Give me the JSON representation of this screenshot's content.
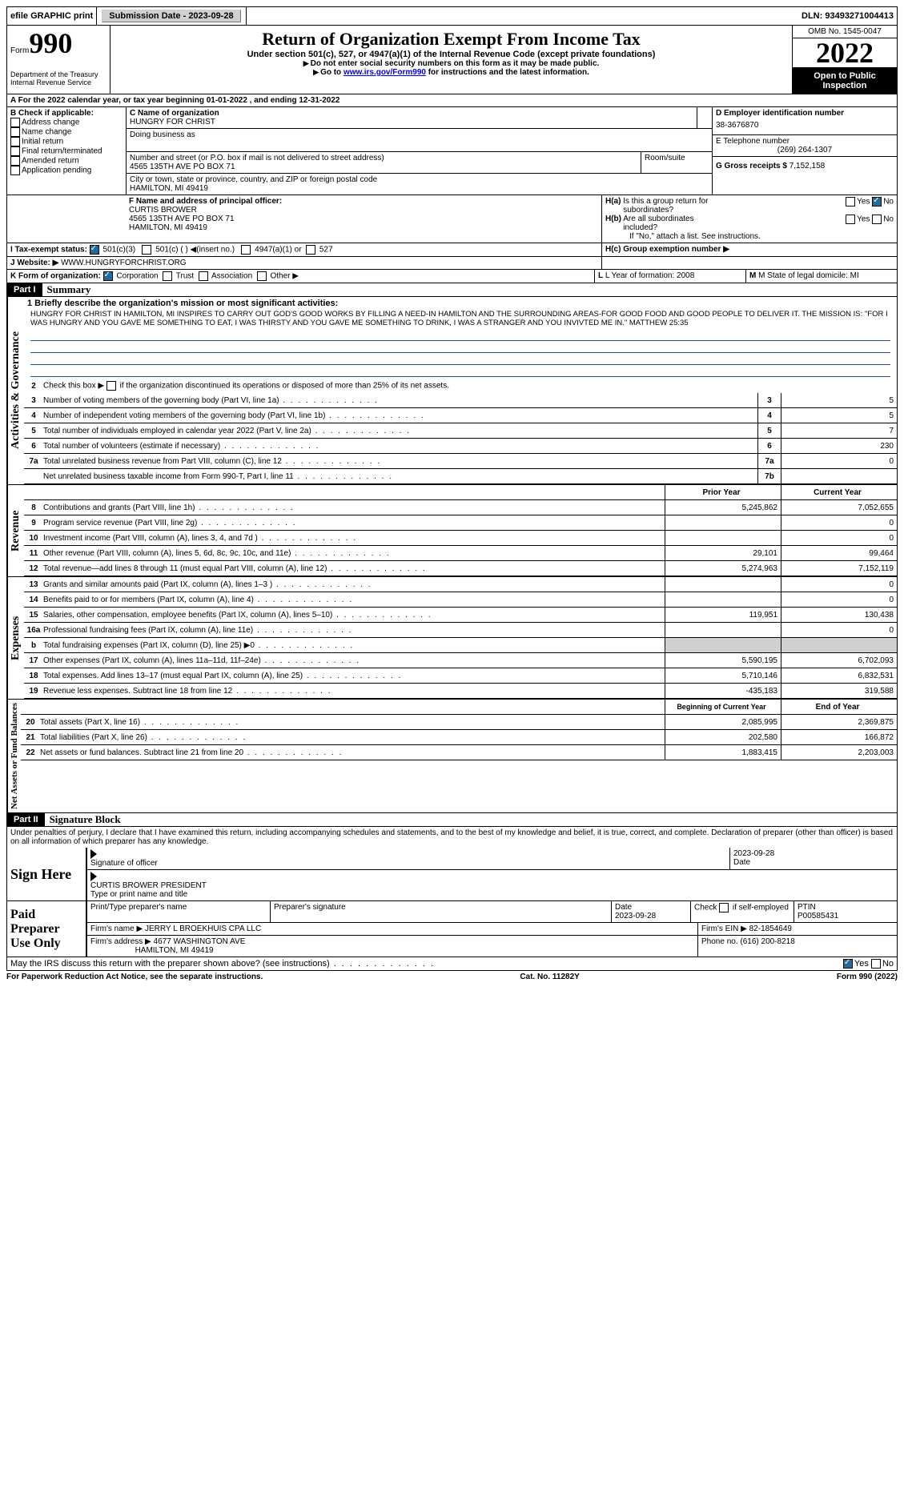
{
  "topbar": {
    "efile": "efile GRAPHIC print",
    "submission_label": "Submission Date - 2023-09-28",
    "dln_label": "DLN: 93493271004413"
  },
  "header": {
    "form_prefix": "Form",
    "form_number": "990",
    "dept": "Department of the Treasury Internal Revenue Service",
    "title": "Return of Organization Exempt From Income Tax",
    "subtitle": "Under section 501(c), 527, or 4947(a)(1) of the Internal Revenue Code (except private foundations)",
    "note1": "Do not enter social security numbers on this form as it may be made public.",
    "note2_pre": "Go to ",
    "note2_link": "www.irs.gov/Form990",
    "note2_post": " for instructions and the latest information.",
    "omb": "OMB No. 1545-0047",
    "year": "2022",
    "open": "Open to Public Inspection"
  },
  "line_a": "For the 2022 calendar year, or tax year beginning 01-01-2022   , and ending 12-31-2022",
  "section_b": {
    "header": "B Check if applicable:",
    "opts": [
      "Address change",
      "Name change",
      "Initial return",
      "Final return/terminated",
      "Amended return",
      "Application pending"
    ]
  },
  "section_c": {
    "name_label": "C Name of organization",
    "org_name": "HUNGRY FOR CHRIST",
    "dba_label": "Doing business as",
    "street_label": "Number and street (or P.O. box if mail is not delivered to street address)",
    "room_label": "Room/suite",
    "street": "4565 135TH AVE PO BOX 71",
    "city_label": "City or town, state or province, country, and ZIP or foreign postal code",
    "city": "HAMILTON, MI  49419"
  },
  "section_d": {
    "label": "D Employer identification number",
    "value": "38-3676870"
  },
  "section_e": {
    "label": "E Telephone number",
    "value": "(269) 264-1307"
  },
  "section_g": {
    "label": "G Gross receipts $",
    "value": "7,152,158"
  },
  "section_f": {
    "label": "F  Name and address of principal officer:",
    "name": "CURTIS BROWER",
    "addr1": "4565 135TH AVE PO BOX 71",
    "addr2": "HAMILTON, MI  49419"
  },
  "section_h": {
    "ha": "H(a)  Is this a group return for subordinates?",
    "hb": "H(b)  Are all subordinates included?",
    "hb_note": "If \"No,\" attach a list. See instructions.",
    "hc": "H(c)  Group exemption number ▶",
    "yes": "Yes",
    "no": "No"
  },
  "section_i": {
    "label": "I   Tax-exempt status:",
    "opt1": "501(c)(3)",
    "opt2": "501(c) (  )",
    "opt2_note": "(insert no.)",
    "opt3": "4947(a)(1) or",
    "opt4": "527"
  },
  "section_j": {
    "label": "J   Website: ▶",
    "value": "WWW.HUNGRYFORCHRIST.ORG"
  },
  "section_k": {
    "label": "K Form of organization:",
    "corp": "Corporation",
    "trust": "Trust",
    "assoc": "Association",
    "other": "Other ▶"
  },
  "section_l": {
    "label": "L Year of formation: 2008"
  },
  "section_m": {
    "label": "M State of legal domicile: MI"
  },
  "part1": {
    "header": "Part I",
    "title": "Summary",
    "line1_label": "1  Briefly describe the organization's mission or most significant activities:",
    "mission": "HUNGRY FOR CHRIST IN HAMILTON, MI INSPIRES TO CARRY OUT GOD'S GOOD WORKS BY FILLING A NEED-IN HAMILTON AND THE SURROUNDING AREAS-FOR GOOD FOOD AND GOOD PEOPLE TO DELIVER IT. THE MISSION IS: \"FOR I WAS HUNGRY AND YOU GAVE ME SOMETHING TO EAT, I WAS THIRSTY AND YOU GAVE ME SOMETHING TO DRINK, I WAS A STRANGER AND YOU INVIVTED ME IN.\" MATTHEW 25:35",
    "line2": "Check this box ▶      if the organization discontinued its operations or disposed of more than 25% of its net assets.",
    "vtab_gov": "Activities & Governance",
    "vtab_rev": "Revenue",
    "vtab_exp": "Expenses",
    "vtab_net": "Net Assets or Fund Balances",
    "rows_gov": [
      {
        "n": "3",
        "t": "Number of voting members of the governing body (Part VI, line 1a)",
        "b": "3",
        "v": "5"
      },
      {
        "n": "4",
        "t": "Number of independent voting members of the governing body (Part VI, line 1b)",
        "b": "4",
        "v": "5"
      },
      {
        "n": "5",
        "t": "Total number of individuals employed in calendar year 2022 (Part V, line 2a)",
        "b": "5",
        "v": "7"
      },
      {
        "n": "6",
        "t": "Total number of volunteers (estimate if necessary)",
        "b": "6",
        "v": "230"
      },
      {
        "n": "7a",
        "t": "Total unrelated business revenue from Part VIII, column (C), line 12",
        "b": "7a",
        "v": "0"
      },
      {
        "n": "",
        "t": "Net unrelated business taxable income from Form 990-T, Part I, line 11",
        "b": "7b",
        "v": ""
      }
    ],
    "col_prior": "Prior Year",
    "col_current": "Current Year",
    "rows_rev": [
      {
        "n": "8",
        "t": "Contributions and grants (Part VIII, line 1h)",
        "p": "5,245,862",
        "c": "7,052,655"
      },
      {
        "n": "9",
        "t": "Program service revenue (Part VIII, line 2g)",
        "p": "",
        "c": "0"
      },
      {
        "n": "10",
        "t": "Investment income (Part VIII, column (A), lines 3, 4, and 7d )",
        "p": "",
        "c": "0"
      },
      {
        "n": "11",
        "t": "Other revenue (Part VIII, column (A), lines 5, 6d, 8c, 9c, 10c, and 11e)",
        "p": "29,101",
        "c": "99,464"
      },
      {
        "n": "12",
        "t": "Total revenue—add lines 8 through 11 (must equal Part VIII, column (A), line 12)",
        "p": "5,274,963",
        "c": "7,152,119"
      }
    ],
    "rows_exp": [
      {
        "n": "13",
        "t": "Grants and similar amounts paid (Part IX, column (A), lines 1–3 )",
        "p": "",
        "c": "0"
      },
      {
        "n": "14",
        "t": "Benefits paid to or for members (Part IX, column (A), line 4)",
        "p": "",
        "c": "0"
      },
      {
        "n": "15",
        "t": "Salaries, other compensation, employee benefits (Part IX, column (A), lines 5–10)",
        "p": "119,951",
        "c": "130,438"
      },
      {
        "n": "16a",
        "t": "Professional fundraising fees (Part IX, column (A), line 11e)",
        "p": "",
        "c": "0"
      },
      {
        "n": "b",
        "t": "Total fundraising expenses (Part IX, column (D), line 25) ▶0",
        "p": "shaded",
        "c": "shaded"
      },
      {
        "n": "17",
        "t": "Other expenses (Part IX, column (A), lines 11a–11d, 11f–24e)",
        "p": "5,590,195",
        "c": "6,702,093"
      },
      {
        "n": "18",
        "t": "Total expenses. Add lines 13–17 (must equal Part IX, column (A), line 25)",
        "p": "5,710,146",
        "c": "6,832,531"
      },
      {
        "n": "19",
        "t": "Revenue less expenses. Subtract line 18 from line 12",
        "p": "-435,183",
        "c": "319,588"
      }
    ],
    "col_begin": "Beginning of Current Year",
    "col_end": "End of Year",
    "rows_net": [
      {
        "n": "20",
        "t": "Total assets (Part X, line 16)",
        "p": "2,085,995",
        "c": "2,369,875"
      },
      {
        "n": "21",
        "t": "Total liabilities (Part X, line 26)",
        "p": "202,580",
        "c": "166,872"
      },
      {
        "n": "22",
        "t": "Net assets or fund balances. Subtract line 21 from line 20",
        "p": "1,883,415",
        "c": "2,203,003"
      }
    ]
  },
  "part2": {
    "header": "Part II",
    "title": "Signature Block",
    "penalty": "Under penalties of perjury, I declare that I have examined this return, including accompanying schedules and statements, and to the best of my knowledge and belief, it is true, correct, and complete. Declaration of preparer (other than officer) is based on all information of which preparer has any knowledge.",
    "sign_here": "Sign Here",
    "sig_officer": "Signature of officer",
    "date": "Date",
    "sig_date": "2023-09-28",
    "officer_name": "CURTIS BROWER  PRESIDENT",
    "type_name": "Type or print name and title",
    "paid_prep": "Paid Preparer Use Only",
    "prep_name_label": "Print/Type preparer's name",
    "prep_sig_label": "Preparer's signature",
    "prep_date": "2023-09-28",
    "check_self": "Check         if self-employed",
    "ptin_label": "PTIN",
    "ptin": "P00585431",
    "firm_name_label": "Firm's name    ▶",
    "firm_name": "JERRY L BROEKHUIS CPA LLC",
    "firm_ein_label": "Firm's EIN ▶",
    "firm_ein": "82-1854649",
    "firm_addr_label": "Firm's address ▶",
    "firm_addr1": "4677 WASHINGTON AVE",
    "firm_addr2": "HAMILTON, MI  49419",
    "phone_label": "Phone no.",
    "phone": "(616) 200-8218",
    "discuss": "May the IRS discuss this return with the preparer shown above? (see instructions)",
    "yes": "Yes",
    "no": "No"
  },
  "footer": {
    "left": "For Paperwork Reduction Act Notice, see the separate instructions.",
    "mid": "Cat. No. 11282Y",
    "right_pre": "Form ",
    "right_form": "990",
    "right_post": " (2022)"
  }
}
